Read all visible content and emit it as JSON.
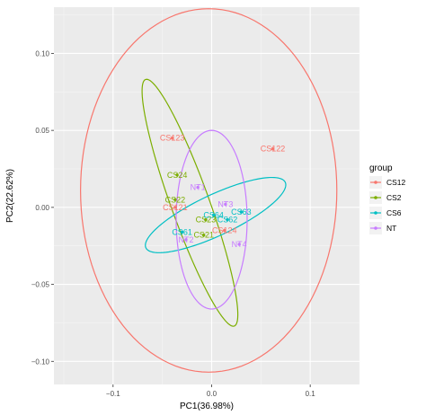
{
  "chart_data": {
    "type": "scatter",
    "xlabel": "PC1(36.98%)",
    "ylabel": "PC2(22.62%)",
    "xlim": [
      -0.16,
      0.15
    ],
    "ylim": [
      -0.115,
      0.13
    ],
    "xticks": [
      -0.1,
      0.0,
      0.1
    ],
    "xtick_labels": [
      "−0.1",
      "0.0",
      "0.1"
    ],
    "yticks": [
      -0.1,
      -0.05,
      0.0,
      0.05,
      0.1
    ],
    "ytick_labels": [
      "−0.10",
      "−0.05",
      "0.00",
      "0.05",
      "0.10"
    ],
    "grid": true,
    "legend": {
      "title": "group",
      "position": "right",
      "entries": [
        {
          "label": "CS12",
          "color": "#F8766D"
        },
        {
          "label": "CS2",
          "color": "#7CAE00"
        },
        {
          "label": "CS6",
          "color": "#00BFC4"
        },
        {
          "label": "NT",
          "color": "#C77CFF"
        }
      ]
    },
    "series": [
      {
        "name": "CS12",
        "color": "#F8766D",
        "points": [
          {
            "label": "CS122",
            "x": 0.062,
            "y": 0.038
          },
          {
            "label": "CS123",
            "x": -0.04,
            "y": 0.045
          },
          {
            "label": "CS121",
            "x": -0.037,
            "y": 0.0
          },
          {
            "label": "CS124",
            "x": 0.013,
            "y": -0.015
          }
        ],
        "ellipse": {
          "cx": -0.003,
          "cy": 0.011,
          "rx": 0.13,
          "ry": 0.118,
          "angle": 0
        }
      },
      {
        "name": "CS2",
        "color": "#7CAE00",
        "points": [
          {
            "label": "CS24",
            "x": -0.035,
            "y": 0.021
          },
          {
            "label": "CS22",
            "x": -0.037,
            "y": 0.005
          },
          {
            "label": "CS23",
            "x": -0.006,
            "y": -0.008
          },
          {
            "label": "CS21",
            "x": -0.008,
            "y": -0.018
          }
        ],
        "ellipse": {
          "cx": -0.022,
          "cy": 0.003,
          "rx": 0.092,
          "ry": 0.018,
          "angle": -60
        }
      },
      {
        "name": "CS6",
        "color": "#00BFC4",
        "points": [
          {
            "label": "CS63",
            "x": 0.03,
            "y": -0.003
          },
          {
            "label": "CS62",
            "x": 0.016,
            "y": -0.008
          },
          {
            "label": "CS64",
            "x": 0.002,
            "y": -0.005
          },
          {
            "label": "CS61",
            "x": -0.03,
            "y": -0.016
          }
        ],
        "ellipse": {
          "cx": 0.004,
          "cy": -0.005,
          "rx": 0.074,
          "ry": 0.014,
          "angle": 16
        }
      },
      {
        "name": "NT",
        "color": "#C77CFF",
        "points": [
          {
            "label": "NT1",
            "x": -0.014,
            "y": 0.013
          },
          {
            "label": "NT3",
            "x": 0.014,
            "y": 0.002
          },
          {
            "label": "NT2",
            "x": -0.026,
            "y": -0.021
          },
          {
            "label": "NT4",
            "x": 0.028,
            "y": -0.024
          }
        ],
        "ellipse": {
          "cx": 0.0,
          "cy": -0.008,
          "rx": 0.036,
          "ry": 0.058,
          "angle": 0
        }
      }
    ]
  }
}
